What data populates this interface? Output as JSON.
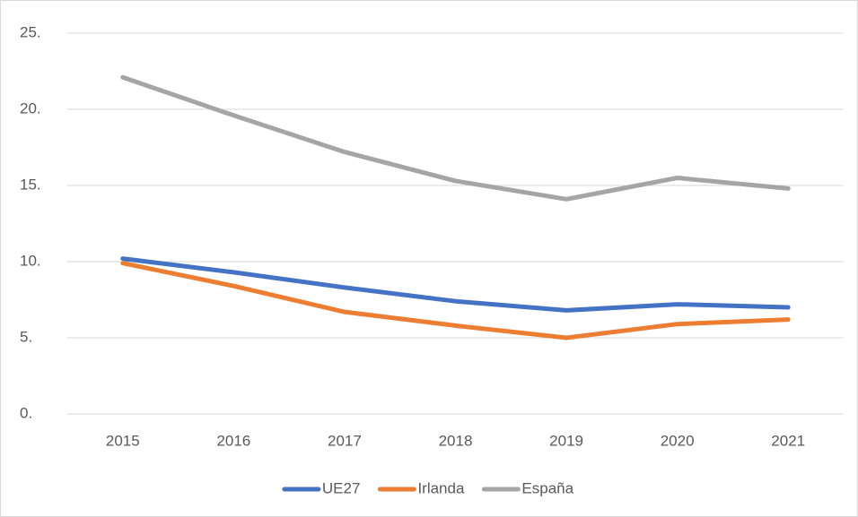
{
  "chart_data": {
    "type": "line",
    "categories": [
      "2015",
      "2016",
      "2017",
      "2018",
      "2019",
      "2020",
      "2021"
    ],
    "series": [
      {
        "name": "UE27",
        "color": "#4472c4",
        "values": [
          10.2,
          9.3,
          8.3,
          7.4,
          6.8,
          7.2,
          7.0
        ]
      },
      {
        "name": "Irlanda",
        "color": "#ed7d31",
        "values": [
          9.9,
          8.4,
          6.7,
          5.8,
          5.0,
          5.9,
          6.2
        ]
      },
      {
        "name": "España",
        "color": "#a5a5a5",
        "values": [
          22.1,
          19.6,
          17.2,
          15.3,
          14.1,
          15.5,
          14.8
        ]
      }
    ],
    "ylim": [
      0,
      25
    ],
    "yticks": [
      {
        "value": 0,
        "label": "0."
      },
      {
        "value": 5,
        "label": "5."
      },
      {
        "value": 10,
        "label": "10."
      },
      {
        "value": 15,
        "label": "15."
      },
      {
        "value": 20,
        "label": "20."
      },
      {
        "value": 25,
        "label": "25."
      }
    ],
    "grid": true,
    "legend": "bottom"
  }
}
